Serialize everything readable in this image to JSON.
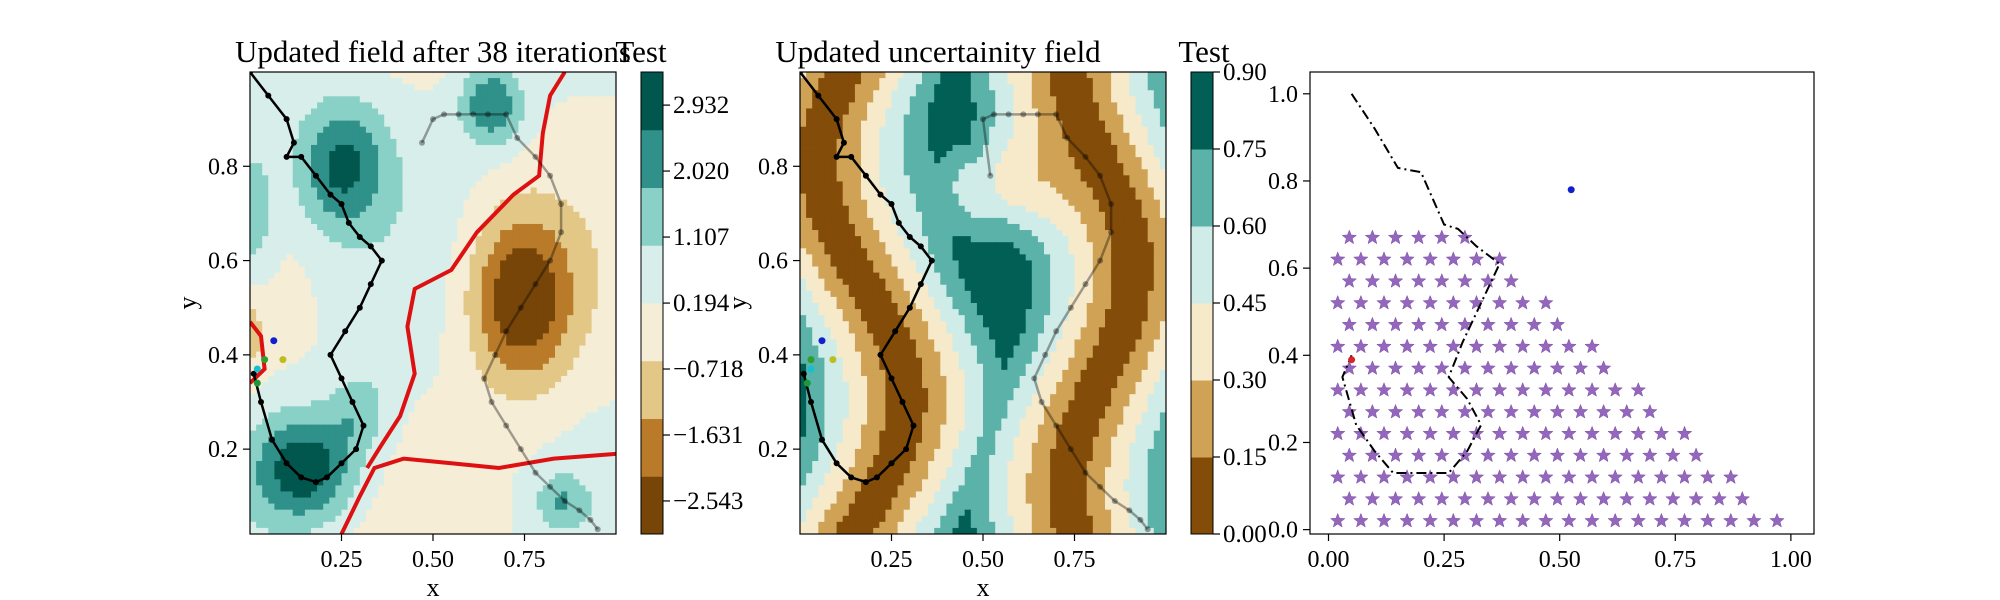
{
  "colors": {
    "cmap_brbg": [
      "#543005",
      "#8c510a",
      "#bf812d",
      "#dfc27d",
      "#f6e8c3",
      "#f5f5f5",
      "#c7eae5",
      "#80cdc1",
      "#35978f",
      "#01665e",
      "#003c30"
    ],
    "path": "#000000",
    "threshold_contour": "#dd1111",
    "star": "#9467bd",
    "blue_point": "#1020cc",
    "red_point": "#d62728"
  },
  "chart_data": [
    {
      "type": "heatmap",
      "title": "Updated field after 38 iterations",
      "xlabel": "x",
      "ylabel": "y",
      "xlim": [
        0.0,
        1.0
      ],
      "ylim": [
        0.02,
        1.0
      ],
      "xticks": [
        "0.25",
        "0.50",
        "0.75"
      ],
      "yticks": [
        "0.2",
        "0.4",
        "0.6",
        "0.8"
      ],
      "colorbar": {
        "label": "Test",
        "ticks": [
          "−2.543",
          "−1.631",
          "−0.718",
          "0.194",
          "1.107",
          "2.020",
          "2.932"
        ],
        "range": [
          -3.0,
          3.39
        ]
      },
      "path": {
        "x": [
          0.0,
          0.05,
          0.1,
          0.12,
          0.1,
          0.14,
          0.18,
          0.22,
          0.25,
          0.27,
          0.3,
          0.33,
          0.36,
          0.33,
          0.3,
          0.26,
          0.22,
          0.25,
          0.28,
          0.31,
          0.29,
          0.25,
          0.21,
          0.18,
          0.14,
          0.1,
          0.06,
          0.03,
          0.01
        ],
        "y": [
          1.0,
          0.95,
          0.9,
          0.85,
          0.82,
          0.82,
          0.78,
          0.74,
          0.72,
          0.68,
          0.65,
          0.63,
          0.6,
          0.55,
          0.5,
          0.45,
          0.4,
          0.35,
          0.3,
          0.25,
          0.2,
          0.17,
          0.14,
          0.13,
          0.14,
          0.17,
          0.22,
          0.3,
          0.36
        ]
      },
      "faded_path": {
        "x": [
          0.47,
          0.5,
          0.53,
          0.57,
          0.61,
          0.65,
          0.7,
          0.73,
          0.78,
          0.82,
          0.85,
          0.85,
          0.82,
          0.78,
          0.74,
          0.7,
          0.67,
          0.64,
          0.66,
          0.7,
          0.74,
          0.78,
          0.82,
          0.86,
          0.9,
          0.93,
          0.95
        ],
        "y": [
          0.85,
          0.9,
          0.91,
          0.91,
          0.91,
          0.91,
          0.91,
          0.86,
          0.82,
          0.78,
          0.72,
          0.66,
          0.6,
          0.55,
          0.5,
          0.45,
          0.4,
          0.35,
          0.3,
          0.25,
          0.2,
          0.15,
          0.12,
          0.09,
          0.07,
          0.05,
          0.03
        ]
      },
      "markers": [
        {
          "x": 0.065,
          "y": 0.43,
          "color": "#1020cc"
        },
        {
          "x": 0.04,
          "y": 0.39,
          "color": "#2ca02c"
        },
        {
          "x": 0.09,
          "y": 0.39,
          "color": "#bcbd22"
        },
        {
          "x": 0.02,
          "y": 0.37,
          "color": "#17becf"
        },
        {
          "x": 0.02,
          "y": 0.34,
          "color": "#1a9a3a"
        }
      ]
    },
    {
      "type": "heatmap",
      "title": "Updated uncertainity field",
      "xlabel": "x",
      "ylabel": "y",
      "xlim": [
        0.0,
        1.0
      ],
      "ylim": [
        0.02,
        1.0
      ],
      "xticks": [
        "0.25",
        "0.50",
        "0.75"
      ],
      "yticks": [
        "0.2",
        "0.4",
        "0.6",
        "0.8"
      ],
      "colorbar": {
        "label": "Test",
        "ticks": [
          "0.00",
          "0.15",
          "0.30",
          "0.45",
          "0.60",
          "0.75",
          "0.90"
        ],
        "range": [
          0.0,
          0.9
        ]
      },
      "path": {
        "x": [
          0.0,
          0.05,
          0.1,
          0.12,
          0.1,
          0.14,
          0.18,
          0.22,
          0.25,
          0.27,
          0.3,
          0.33,
          0.36,
          0.33,
          0.3,
          0.26,
          0.22,
          0.25,
          0.28,
          0.31,
          0.29,
          0.25,
          0.21,
          0.18,
          0.14,
          0.1,
          0.06,
          0.03,
          0.01
        ],
        "y": [
          1.0,
          0.95,
          0.9,
          0.85,
          0.82,
          0.82,
          0.78,
          0.74,
          0.72,
          0.68,
          0.65,
          0.63,
          0.6,
          0.55,
          0.5,
          0.45,
          0.4,
          0.35,
          0.3,
          0.25,
          0.2,
          0.17,
          0.14,
          0.13,
          0.14,
          0.17,
          0.22,
          0.3,
          0.36
        ]
      },
      "faded_path": {
        "x": [
          0.52,
          0.5,
          0.53,
          0.57,
          0.61,
          0.65,
          0.7,
          0.73,
          0.78,
          0.82,
          0.85,
          0.85,
          0.82,
          0.78,
          0.74,
          0.7,
          0.67,
          0.64,
          0.66,
          0.7,
          0.74,
          0.78,
          0.82,
          0.86,
          0.9,
          0.93,
          0.95
        ],
        "y": [
          0.78,
          0.9,
          0.91,
          0.91,
          0.91,
          0.91,
          0.91,
          0.86,
          0.82,
          0.78,
          0.72,
          0.66,
          0.6,
          0.55,
          0.5,
          0.45,
          0.4,
          0.35,
          0.3,
          0.25,
          0.2,
          0.15,
          0.12,
          0.09,
          0.07,
          0.05,
          0.03
        ]
      },
      "markers": [
        {
          "x": 0.06,
          "y": 0.43,
          "color": "#1020cc"
        },
        {
          "x": 0.03,
          "y": 0.39,
          "color": "#2ca02c"
        },
        {
          "x": 0.09,
          "y": 0.39,
          "color": "#bcbd22"
        },
        {
          "x": 0.03,
          "y": 0.37,
          "color": "#17becf"
        },
        {
          "x": 0.02,
          "y": 0.34,
          "color": "#1a9a3a"
        }
      ]
    },
    {
      "type": "scatter",
      "title": "",
      "xlim": [
        -0.04,
        1.05
      ],
      "ylim": [
        -0.01,
        1.05
      ],
      "xticks": [
        "0.00",
        "0.25",
        "0.50",
        "0.75",
        "1.00"
      ],
      "yticks": [
        "0.0",
        "0.2",
        "0.4",
        "0.6",
        "0.8",
        "1.0"
      ],
      "stars": {
        "grid_step": 0.05,
        "rule": "x + y <= 1.0, x >= 0.02, y >= 0.05"
      },
      "path": {
        "x": [
          0.05,
          0.1,
          0.15,
          0.2,
          0.25,
          0.28,
          0.32,
          0.37,
          0.33,
          0.29,
          0.26,
          0.3,
          0.33,
          0.3,
          0.26,
          0.22,
          0.18,
          0.14,
          0.1,
          0.06,
          0.03,
          0.05
        ],
        "y": [
          1.0,
          0.92,
          0.83,
          0.82,
          0.7,
          0.69,
          0.65,
          0.61,
          0.52,
          0.43,
          0.35,
          0.3,
          0.24,
          0.18,
          0.13,
          0.13,
          0.13,
          0.13,
          0.18,
          0.24,
          0.35,
          0.4
        ]
      },
      "markers": [
        {
          "x": 0.525,
          "y": 0.78,
          "color": "#1020cc"
        },
        {
          "x": 0.05,
          "y": 0.39,
          "color": "#d62728"
        }
      ]
    }
  ]
}
